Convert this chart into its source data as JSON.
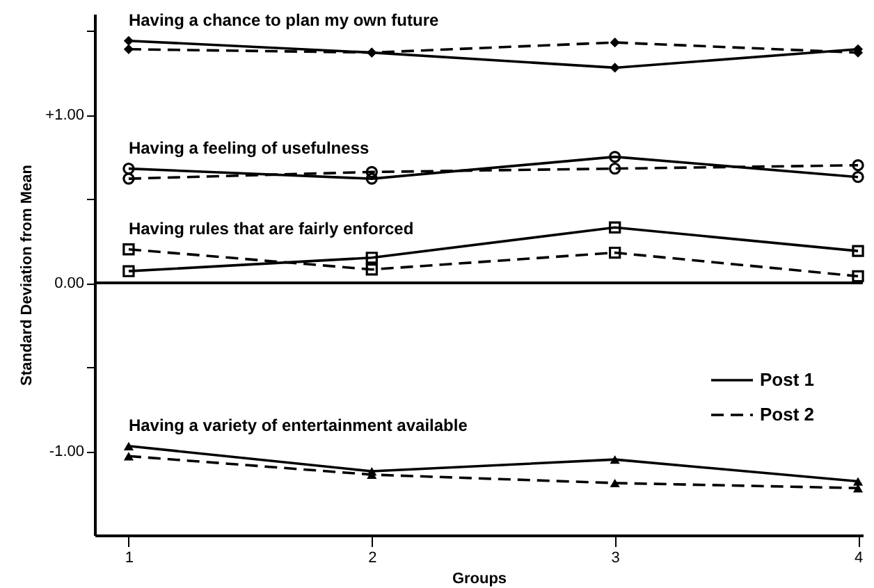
{
  "chart_data": {
    "type": "line",
    "xlabel": "Groups",
    "ylabel": "Standard Deviation from Mean",
    "x": [
      1,
      2,
      3,
      4
    ],
    "xlim": [
      0.86,
      4.02
    ],
    "xticks": [
      1,
      2,
      3,
      4
    ],
    "ylim": [
      -1.5,
      1.6
    ],
    "yticks": [
      {
        "value": 1.5,
        "label": null
      },
      {
        "value": 1,
        "label": "+1.00"
      },
      {
        "value": 0.5,
        "label": null
      },
      {
        "value": 0,
        "label": "0.00"
      },
      {
        "value": -0.5,
        "label": null
      },
      {
        "value": -1,
        "label": "-1.00"
      }
    ],
    "grid": false,
    "legend": "right",
    "series": [
      {
        "name": "Post 1",
        "color": "#000000",
        "line_style": "solid",
        "marker": "diamond",
        "values": [
          1.44,
          1.37,
          1.28,
          1.39
        ]
      },
      {
        "name": "Post 2",
        "color": "#000000",
        "line_style": "dashed",
        "marker": "diamond",
        "values": [
          1.39,
          1.37,
          1.43,
          1.37
        ]
      },
      {
        "color": "#000000",
        "line_style": "solid",
        "marker": "circle",
        "values": [
          0.68,
          0.62,
          0.75,
          0.63
        ]
      },
      {
        "color": "#000000",
        "line_style": "dashed",
        "marker": "circle",
        "values": [
          0.62,
          0.66,
          0.68,
          0.7
        ]
      },
      {
        "color": "#000000",
        "line_style": "solid",
        "marker": "square",
        "values": [
          0.07,
          0.15,
          0.33,
          0.19
        ]
      },
      {
        "color": "#000000",
        "line_style": "dashed",
        "marker": "square",
        "values": [
          0.2,
          0.08,
          0.18,
          0.04
        ]
      },
      {
        "color": "#000000",
        "line_style": "solid",
        "marker": "triangle",
        "values": [
          -0.97,
          -1.12,
          -1.05,
          -1.18
        ]
      },
      {
        "color": "#000000",
        "line_style": "dashed",
        "marker": "triangle",
        "values": [
          -1.03,
          -1.14,
          -1.19,
          -1.22
        ]
      }
    ],
    "ref_lines": [
      {
        "axis": "y",
        "value": 0,
        "color": "#000000"
      }
    ],
    "annotations": [
      "Having a chance to plan my own future",
      "Having a feeling of usefulness",
      "Having rules that are fairly enforced",
      "Having a variety of entertainment available"
    ]
  }
}
